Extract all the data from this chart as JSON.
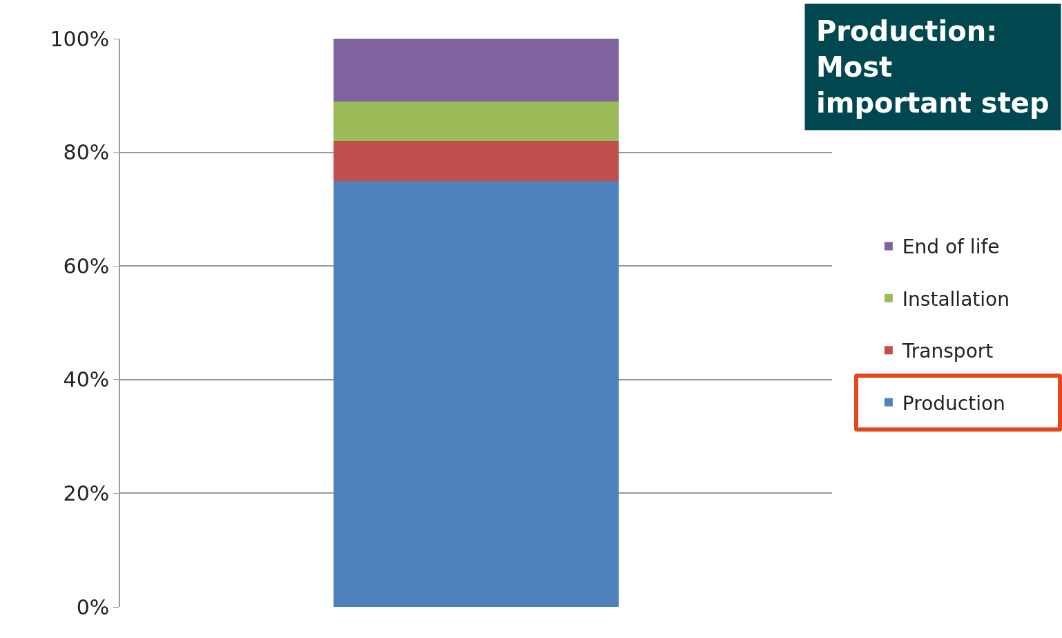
{
  "chart_data": {
    "type": "bar",
    "stacked": true,
    "categories": [
      null
    ],
    "series": [
      {
        "name": "Production",
        "color": "#4f81bd",
        "values": [
          75
        ]
      },
      {
        "name": "Transport",
        "color": "#c0504d",
        "values": [
          7
        ]
      },
      {
        "name": "Installation",
        "color": "#9bbb59",
        "values": [
          7
        ]
      },
      {
        "name": "End of life",
        "color": "#8064a2",
        "values": [
          11
        ]
      }
    ],
    "ylim": [
      0,
      100
    ],
    "yticks": [
      {
        "value": 0,
        "label": "0%"
      },
      {
        "value": 20,
        "label": "20%"
      },
      {
        "value": 40,
        "label": "40%"
      },
      {
        "value": 60,
        "label": "60%"
      },
      {
        "value": 80,
        "label": "80%"
      },
      {
        "value": 100,
        "label": "100%"
      }
    ],
    "grid": "y",
    "legend": "right",
    "annotations": [
      "Production:\nMost\nimportant step"
    ]
  }
}
